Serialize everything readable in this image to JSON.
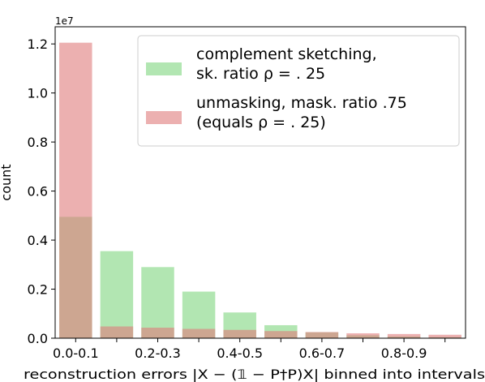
{
  "chart_data": {
    "type": "bar",
    "xlabel": "reconstruction errors |X − (𝟙 − P†P)X| binned into intervals",
    "ylabel": "count",
    "y_offset_label": "1e7",
    "ylim": [
      0,
      1.27
    ],
    "y_ticks": [
      "0.0",
      "0.2",
      "0.4",
      "0.6",
      "0.8",
      "1.0",
      "1.2"
    ],
    "y_tick_values": [
      0.0,
      0.2,
      0.4,
      0.6,
      0.8,
      1.0,
      1.2
    ],
    "categories": [
      "0.0-0.1",
      "0.1-0.2",
      "0.2-0.3",
      "0.3-0.4",
      "0.4-0.5",
      "0.5-0.6",
      "0.6-0.7",
      "0.7-0.8",
      "0.8-0.9",
      "0.9-1.0"
    ],
    "x_tick_labels": [
      "0.0-0.1",
      "",
      "0.2-0.3",
      "",
      "0.4-0.5",
      "",
      "0.6-0.7",
      "",
      "0.8-0.9",
      ""
    ],
    "grid": false,
    "legend_position": "top-right",
    "series": [
      {
        "name": "complement sketching, sk. ratio ρ = .25",
        "legend_lines": [
          "complement sketching,",
          "sk. ratio ρ = . 25"
        ],
        "color": "#7fd67f",
        "opacity": 0.6,
        "values": [
          0.495,
          0.355,
          0.29,
          0.19,
          0.105,
          0.053,
          0.024,
          0.012,
          0.007,
          0.004
        ]
      },
      {
        "name": "unmasking, mask. ratio .75 (equals ρ = .25)",
        "legend_lines": [
          "unmasking, mask. ratio .75",
          "(equals ρ = . 25)"
        ],
        "color": "#e07b7b",
        "opacity": 0.6,
        "values": [
          1.205,
          0.048,
          0.043,
          0.038,
          0.034,
          0.029,
          0.025,
          0.02,
          0.017,
          0.014
        ]
      }
    ]
  }
}
